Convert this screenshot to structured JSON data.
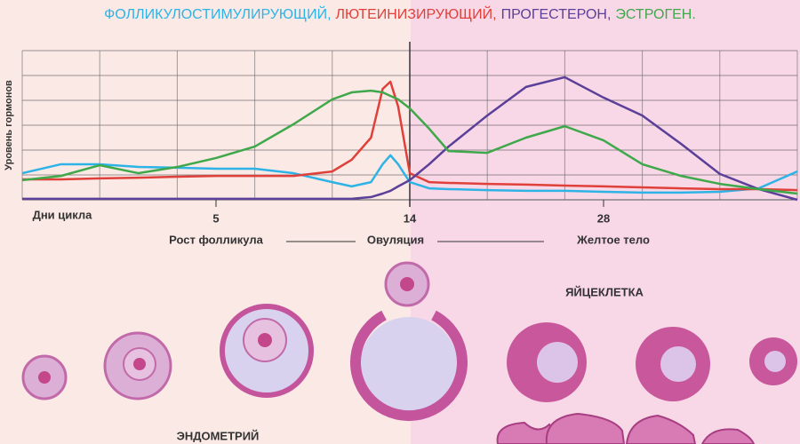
{
  "chart_data": {
    "type": "line",
    "y_label": "Уровень гормонов",
    "x_label": "Дни цикла",
    "xlim": [
      0,
      10
    ],
    "ylim": [
      0,
      6
    ],
    "xticks": [
      {
        "value": 2.5,
        "label": "5"
      },
      {
        "value": 5,
        "label": "14"
      },
      {
        "value": 7.5,
        "label": "28"
      }
    ],
    "yticks": [
      0,
      1,
      2,
      3,
      4,
      5,
      6
    ],
    "grid": true,
    "x": [
      0,
      0.5,
      1,
      1.5,
      2,
      2.5,
      3,
      3.5,
      4,
      4.25,
      4.5,
      4.65,
      4.75,
      4.85,
      5,
      5.25,
      5.5,
      6,
      6.5,
      7,
      7.5,
      8,
      8.5,
      9,
      9.5,
      10
    ],
    "series": [
      {
        "name": "ФОЛЛИКУЛОСТИМУЛИРУЮЩИЙ,",
        "color": "#2eb3e6",
        "values": [
          1.07,
          1.43,
          1.43,
          1.32,
          1.29,
          1.25,
          1.25,
          1.07,
          0.71,
          0.54,
          0.71,
          1.43,
          1.79,
          1.43,
          0.71,
          0.46,
          0.43,
          0.39,
          0.36,
          0.36,
          0.32,
          0.29,
          0.29,
          0.32,
          0.46,
          1.14
        ]
      },
      {
        "name": "ЛЮТЕИНИЗИРУЮЩИЙ,",
        "color": "#e0403a",
        "values": [
          0.82,
          0.82,
          0.86,
          0.89,
          0.93,
          0.96,
          0.96,
          0.96,
          1.14,
          1.61,
          2.5,
          4.46,
          4.75,
          3.75,
          1.07,
          0.71,
          0.68,
          0.64,
          0.61,
          0.57,
          0.54,
          0.5,
          0.46,
          0.43,
          0.43,
          0.39
        ]
      },
      {
        "name": "ПРОГЕСТЕРОН,",
        "color": "#5b3f99",
        "values": [
          0.04,
          0.04,
          0.04,
          0.04,
          0.04,
          0.04,
          0.04,
          0.04,
          0.04,
          0.04,
          0.11,
          0.25,
          0.36,
          0.54,
          0.79,
          1.43,
          2.14,
          3.39,
          4.54,
          4.93,
          4.11,
          3.39,
          2.25,
          1.04,
          0.43,
          0
        ]
      },
      {
        "name": "ЭСТРОГЕН.",
        "color": "#3fa84a",
        "values": [
          0.79,
          0.96,
          1.39,
          1.07,
          1.32,
          1.68,
          2.14,
          3.04,
          4.04,
          4.32,
          4.39,
          4.32,
          4.18,
          4.04,
          3.68,
          2.86,
          1.96,
          1.89,
          2.5,
          2.96,
          2.39,
          1.43,
          0.96,
          0.64,
          0.43,
          0.25
        ]
      }
    ],
    "phases": [
      "Рост фолликула",
      "Овуляция",
      "Желтое тело"
    ],
    "diagram_labels": [
      "ЯЙЦЕКЛЕТКА",
      "ЭНДОМЕТРИЙ"
    ]
  }
}
